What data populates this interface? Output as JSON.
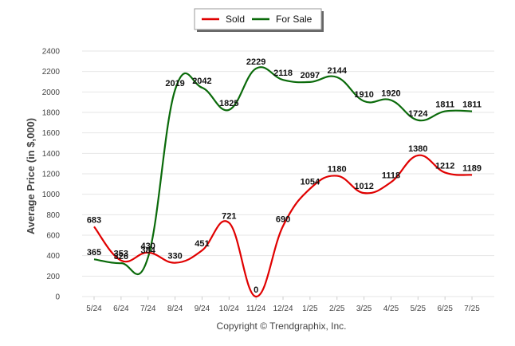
{
  "chart_data": {
    "type": "line",
    "categories": [
      "5/24",
      "6/24",
      "7/24",
      "8/24",
      "9/24",
      "10/24",
      "11/24",
      "12/24",
      "1/25",
      "2/25",
      "3/25",
      "4/25",
      "5/25",
      "6/25",
      "7/25"
    ],
    "series": [
      {
        "name": "Sold",
        "color": "#e00000",
        "values": [
          683,
          353,
          430,
          330,
          451,
          721,
          0,
          690,
          1054,
          1180,
          1012,
          1118,
          1380,
          1212,
          1189
        ]
      },
      {
        "name": "For Sale",
        "color": "#0a6a0a",
        "values": [
          365,
          326,
          384,
          2019,
          2042,
          1825,
          2229,
          2118,
          2097,
          2144,
          1910,
          1920,
          1724,
          1811,
          1811
        ]
      }
    ],
    "ylabel": "Average Price (in $,000)",
    "ylim": [
      0,
      2400
    ],
    "yticks": [
      0,
      200,
      400,
      600,
      800,
      1000,
      1200,
      1400,
      1600,
      1800,
      2000,
      2200,
      2400
    ],
    "grid": true,
    "legend": "top-center"
  },
  "footer": {
    "copyright": "Copyright © Trendgraphix, Inc."
  }
}
